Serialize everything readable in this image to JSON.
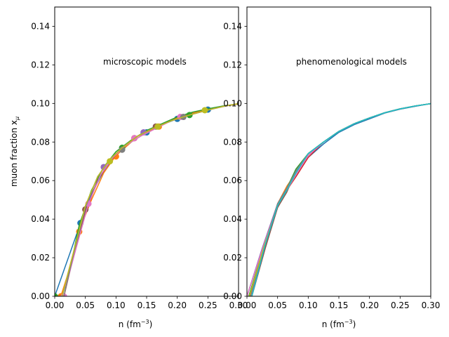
{
  "chart_data": [
    {
      "type": "line",
      "annotation": "microscopic models",
      "xlabel": "n (fm",
      "xlabel_sup": "−3",
      "xlabel_close": ")",
      "ylabel": "muon fraction x",
      "ylabel_sub": "μ",
      "xlim": [
        0,
        0.3
      ],
      "ylim": [
        0,
        0.15
      ],
      "xticks": [
        "0.00",
        "0.05",
        "0.10",
        "0.15",
        "0.20",
        "0.25",
        "0.30"
      ],
      "yticks": [
        "0.00",
        "0.02",
        "0.04",
        "0.06",
        "0.08",
        "0.10",
        "0.12",
        "0.14"
      ],
      "xtick_values": [
        0,
        0.05,
        0.1,
        0.15,
        0.2,
        0.25,
        0.3
      ],
      "ytick_values": [
        0,
        0.02,
        0.04,
        0.06,
        0.08,
        0.1,
        0.12,
        0.14
      ],
      "series": [
        {
          "color": "#1f77b4",
          "x": [
            0.0,
            0.04,
            0.06,
            0.08,
            0.1,
            0.125,
            0.15,
            0.175,
            0.2,
            0.225,
            0.25,
            0.275,
            0.3
          ],
          "y": [
            0.0,
            0.036,
            0.053,
            0.065,
            0.073,
            0.08,
            0.085,
            0.089,
            0.092,
            0.095,
            0.097,
            0.0985,
            0.0997
          ],
          "markers_x": [
            0.0,
            0.042,
            0.15,
            0.2,
            0.25
          ],
          "markers_y": [
            0.0,
            0.038,
            0.085,
            0.092,
            0.0968
          ]
        },
        {
          "color": "#ff7f0e",
          "x": [
            0.01,
            0.02,
            0.04,
            0.06,
            0.08,
            0.1,
            0.125,
            0.15,
            0.175,
            0.2,
            0.225,
            0.25,
            0.275,
            0.3
          ],
          "y": [
            0.0,
            0.01,
            0.034,
            0.05,
            0.064,
            0.073,
            0.08,
            0.085,
            0.089,
            0.0925,
            0.095,
            0.097,
            0.0985,
            0.0997
          ],
          "markers_x": [
            0.01,
            0.04,
            0.1,
            0.17
          ],
          "markers_y": [
            0.0,
            0.0335,
            0.0725,
            0.088
          ]
        },
        {
          "color": "#2ca02c",
          "x": [
            0.012,
            0.025,
            0.04,
            0.06,
            0.08,
            0.1,
            0.125,
            0.15,
            0.175,
            0.2,
            0.225,
            0.25,
            0.275,
            0.3
          ],
          "y": [
            0.0,
            0.014,
            0.037,
            0.055,
            0.067,
            0.075,
            0.081,
            0.086,
            0.0895,
            0.093,
            0.0955,
            0.0972,
            0.0987,
            0.0998
          ],
          "markers_x": [
            0.0,
            0.11,
            0.22
          ],
          "markers_y": [
            0.0,
            0.077,
            0.094
          ]
        },
        {
          "color": "#d62728",
          "x": [
            0.015,
            0.03,
            0.05,
            0.07,
            0.09,
            0.11,
            0.135,
            0.16,
            0.19,
            0.22,
            0.25,
            0.28,
            0.3
          ],
          "y": [
            0.0,
            0.02,
            0.043,
            0.06,
            0.07,
            0.077,
            0.083,
            0.087,
            0.091,
            0.094,
            0.0966,
            0.0988,
            0.0999
          ],
          "markers_x": [
            0.05,
            0.13
          ],
          "markers_y": [
            0.045,
            0.082
          ]
        },
        {
          "color": "#9467bd",
          "x": [
            0.012,
            0.03,
            0.05,
            0.07,
            0.09,
            0.11,
            0.135,
            0.16,
            0.19,
            0.22,
            0.25,
            0.28,
            0.3
          ],
          "y": [
            0.0,
            0.02,
            0.046,
            0.062,
            0.071,
            0.077,
            0.083,
            0.087,
            0.091,
            0.094,
            0.0966,
            0.0988,
            0.0999
          ],
          "markers_x": [
            0.08,
            0.145
          ],
          "markers_y": [
            0.067,
            0.085
          ]
        },
        {
          "color": "#8c564b",
          "x": [
            0.015,
            0.03,
            0.05,
            0.07,
            0.09,
            0.11,
            0.135,
            0.16,
            0.19,
            0.22,
            0.25,
            0.28,
            0.3
          ],
          "y": [
            0.0,
            0.021,
            0.044,
            0.06,
            0.07,
            0.077,
            0.083,
            0.087,
            0.091,
            0.094,
            0.0966,
            0.0988,
            0.0999
          ],
          "markers_x": [
            0.05,
            0.165
          ],
          "markers_y": [
            0.045,
            0.088
          ]
        },
        {
          "color": "#e377c2",
          "x": [
            0.018,
            0.035,
            0.055,
            0.075,
            0.095,
            0.115,
            0.14,
            0.165,
            0.19,
            0.22,
            0.25,
            0.28,
            0.3
          ],
          "y": [
            0.005,
            0.025,
            0.048,
            0.063,
            0.072,
            0.078,
            0.083,
            0.087,
            0.091,
            0.094,
            0.0966,
            0.0988,
            0.0999
          ],
          "markers_x": [
            0.015,
            0.055,
            0.13,
            0.205
          ],
          "markers_y": [
            0.0,
            0.048,
            0.082,
            0.093
          ]
        },
        {
          "color": "#7f7f7f",
          "x": [
            0.015,
            0.03,
            0.05,
            0.07,
            0.09,
            0.11,
            0.135,
            0.16,
            0.19,
            0.22,
            0.25,
            0.28,
            0.3
          ],
          "y": [
            0.0,
            0.021,
            0.046,
            0.062,
            0.071,
            0.077,
            0.083,
            0.087,
            0.091,
            0.094,
            0.0966,
            0.0988,
            0.0999
          ],
          "markers_x": [
            0.11,
            0.21
          ],
          "markers_y": [
            0.076,
            0.093
          ]
        },
        {
          "color": "#bcbd22",
          "x": [
            0.012,
            0.03,
            0.05,
            0.07,
            0.09,
            0.11,
            0.135,
            0.16,
            0.19,
            0.22,
            0.25,
            0.28,
            0.3
          ],
          "y": [
            0.0,
            0.022,
            0.047,
            0.062,
            0.071,
            0.077,
            0.083,
            0.087,
            0.091,
            0.094,
            0.0966,
            0.0988,
            0.0999
          ],
          "markers_x": [
            0.09,
            0.168,
            0.245
          ],
          "markers_y": [
            0.07,
            0.088,
            0.0965
          ]
        }
      ]
    },
    {
      "type": "line",
      "annotation": "phenomenological models",
      "xlabel": "n (fm",
      "xlabel_sup": "−3",
      "xlabel_close": ")",
      "xlim": [
        0,
        0.3
      ],
      "ylim": [
        0,
        0.15
      ],
      "xticks": [
        "0.00",
        "0.05",
        "0.10",
        "0.15",
        "0.20",
        "0.25",
        "0.30"
      ],
      "yticks": [
        "0.00",
        "0.02",
        "0.04",
        "0.06",
        "0.08",
        "0.10",
        "0.12",
        "0.14"
      ],
      "xtick_values": [
        0,
        0.05,
        0.1,
        0.15,
        0.2,
        0.25,
        0.3
      ],
      "ytick_values": [
        0,
        0.02,
        0.04,
        0.06,
        0.08,
        0.1,
        0.12,
        0.14
      ],
      "series": [
        {
          "color": "#1f77b4",
          "x": [
            0.0,
            0.025,
            0.05,
            0.065,
            0.08,
            0.1,
            0.125,
            0.15,
            0.175,
            0.2,
            0.225,
            0.25,
            0.275,
            0.3
          ],
          "y": [
            0.0,
            0.024,
            0.046,
            0.055,
            0.063,
            0.072,
            0.079,
            0.085,
            0.089,
            0.092,
            0.095,
            0.097,
            0.0985,
            0.0999
          ]
        },
        {
          "color": "#ff7f0e",
          "x": [
            0.008,
            0.03,
            0.05,
            0.065,
            0.08,
            0.1,
            0.125,
            0.15,
            0.175,
            0.2,
            0.225,
            0.25,
            0.275,
            0.3
          ],
          "y": [
            0.0,
            0.026,
            0.048,
            0.057,
            0.064,
            0.073,
            0.08,
            0.0855,
            0.0895,
            0.0925,
            0.0952,
            0.0972,
            0.0987,
            0.0999
          ]
        },
        {
          "color": "#2ca02c",
          "x": [
            0.003,
            0.028,
            0.05,
            0.065,
            0.08,
            0.1,
            0.125,
            0.15,
            0.175,
            0.2,
            0.225,
            0.25,
            0.275,
            0.3
          ],
          "y": [
            0.0,
            0.026,
            0.047,
            0.056,
            0.066,
            0.074,
            0.08,
            0.0855,
            0.0895,
            0.0925,
            0.0952,
            0.0972,
            0.0987,
            0.0999
          ]
        },
        {
          "color": "#d62728",
          "x": [
            0.005,
            0.03,
            0.05,
            0.065,
            0.08,
            0.1,
            0.125,
            0.15,
            0.175,
            0.2,
            0.225,
            0.25,
            0.275,
            0.3
          ],
          "y": [
            0.0,
            0.027,
            0.047,
            0.055,
            0.062,
            0.072,
            0.08,
            0.0855,
            0.0895,
            0.0925,
            0.0952,
            0.0972,
            0.0987,
            0.0999
          ]
        },
        {
          "color": "#9467bd",
          "x": [
            0.0,
            0.025,
            0.05,
            0.065,
            0.08,
            0.1,
            0.125,
            0.15,
            0.175,
            0.2,
            0.225,
            0.25,
            0.275,
            0.3
          ],
          "y": [
            0.0,
            0.025,
            0.048,
            0.056,
            0.064,
            0.073,
            0.08,
            0.0855,
            0.0895,
            0.0925,
            0.0952,
            0.0972,
            0.0987,
            0.0999
          ]
        },
        {
          "color": "#8c564b",
          "x": [
            0.008,
            0.03,
            0.05,
            0.065,
            0.08,
            0.1,
            0.125,
            0.15,
            0.175,
            0.2,
            0.225,
            0.25,
            0.275,
            0.3
          ],
          "y": [
            0.0,
            0.025,
            0.046,
            0.054,
            0.065,
            0.074,
            0.08,
            0.0855,
            0.0895,
            0.0925,
            0.0952,
            0.0972,
            0.0987,
            0.0999
          ]
        },
        {
          "color": "#e377c2",
          "x": [
            0.0,
            0.025,
            0.05,
            0.065,
            0.08,
            0.1,
            0.125,
            0.15,
            0.175,
            0.2,
            0.225,
            0.25,
            0.275,
            0.3
          ],
          "y": [
            0.0,
            0.024,
            0.047,
            0.055,
            0.063,
            0.073,
            0.08,
            0.0855,
            0.0895,
            0.0925,
            0.0952,
            0.0972,
            0.0987,
            0.0999
          ]
        },
        {
          "color": "#7f7f7f",
          "x": [
            0.006,
            0.03,
            0.05,
            0.065,
            0.08,
            0.1,
            0.125,
            0.15,
            0.175,
            0.2,
            0.225,
            0.25,
            0.275,
            0.3
          ],
          "y": [
            0.0,
            0.027,
            0.048,
            0.056,
            0.065,
            0.074,
            0.08,
            0.0855,
            0.0895,
            0.0925,
            0.0952,
            0.0972,
            0.0987,
            0.0999
          ]
        },
        {
          "color": "#bcbd22",
          "x": [
            0.004,
            0.028,
            0.05,
            0.065,
            0.08,
            0.1,
            0.125,
            0.15,
            0.175,
            0.2,
            0.225,
            0.25,
            0.275,
            0.3
          ],
          "y": [
            0.0,
            0.026,
            0.047,
            0.055,
            0.064,
            0.074,
            0.08,
            0.0855,
            0.0895,
            0.0925,
            0.0952,
            0.0972,
            0.0987,
            0.0999
          ]
        },
        {
          "color": "#17becf",
          "x": [
            0.008,
            0.03,
            0.05,
            0.065,
            0.08,
            0.1,
            0.125,
            0.15,
            0.175,
            0.2,
            0.225,
            0.25,
            0.275,
            0.3
          ],
          "y": [
            0.0,
            0.027,
            0.047,
            0.055,
            0.064,
            0.074,
            0.08,
            0.0855,
            0.0895,
            0.0925,
            0.0952,
            0.0972,
            0.0987,
            0.0999
          ]
        }
      ]
    }
  ]
}
